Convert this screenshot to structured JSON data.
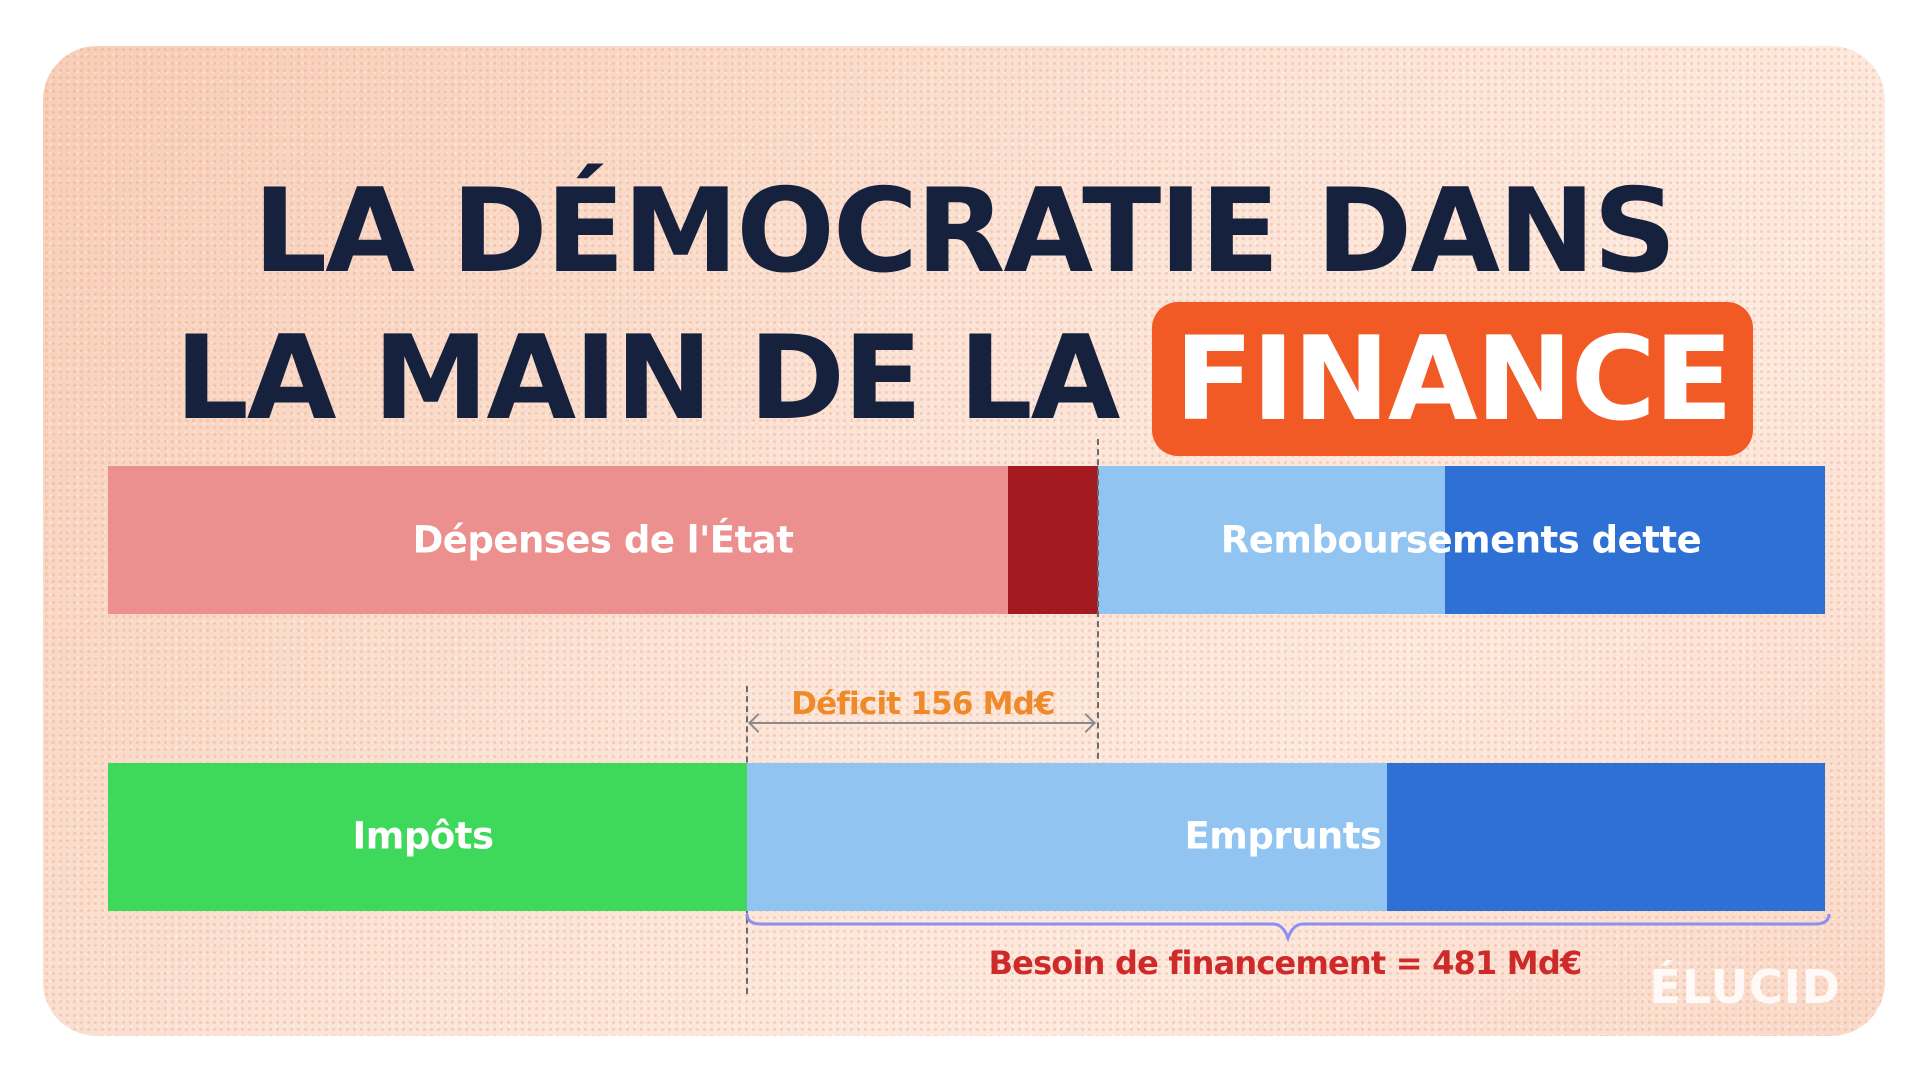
{
  "title": {
    "line1": "LA DÉMOCRATIE DANS",
    "line2_prefix": "LA MAIN DE LA",
    "line2_highlight": "FINANCE"
  },
  "diagram": {
    "top_bar": {
      "label_spending": "Dépenses de l'État",
      "label_repayments": "Remboursements dette"
    },
    "bottom_bar": {
      "label_taxes": "Impôts",
      "label_borrowing": "Emprunts"
    },
    "deficit_label": "Déficit 156 Md€",
    "financing_label": "Besoin de financement = 481 Md€"
  },
  "brand": "ÉLUCID",
  "colors": {
    "title_text": "#16213d",
    "accent_orange": "#f15a25",
    "spending_pink": "#eb8f8f",
    "deficit_darkred": "#a31b20",
    "light_blue": "#92c4f2",
    "dark_blue": "#2e70d4",
    "taxes_green": "#3ed85b",
    "deficit_text": "#ef8a2a",
    "financing_text": "#cf2a2a",
    "brace": "#8f8ff0"
  }
}
